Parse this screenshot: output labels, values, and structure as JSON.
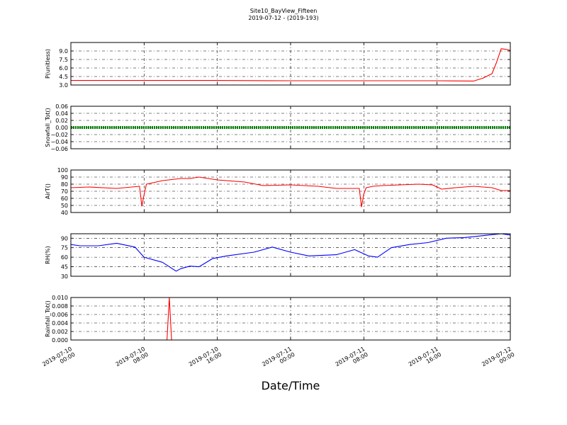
{
  "title": {
    "line1": "Site10_BayView_Fifteen",
    "line2": "2019-07-12 - (2019-193)"
  },
  "x_axis": {
    "label": "Date/Time",
    "range": [
      "2019-07-10 00:00",
      "2019-07-12 00:00"
    ],
    "ticks": [
      {
        "value": "2019-07-10 00:00",
        "line1": "2019-07-10",
        "line2": "00:00"
      },
      {
        "value": "2019-07-10 08:00",
        "line1": "2019-07-10",
        "line2": "08:00"
      },
      {
        "value": "2019-07-10 16:00",
        "line1": "2019-07-10",
        "line2": "16:00"
      },
      {
        "value": "2019-07-11 00:00",
        "line1": "2019-07-11",
        "line2": "00:00"
      },
      {
        "value": "2019-07-11 08:00",
        "line1": "2019-07-11",
        "line2": "08:00"
      },
      {
        "value": "2019-07-11 16:00",
        "line1": "2019-07-11",
        "line2": "16:00"
      },
      {
        "value": "2019-07-12 00:00",
        "line1": "2019-07-12",
        "line2": "00:00"
      }
    ]
  },
  "chart_data": [
    {
      "type": "line",
      "ylabel": "P(unitless)",
      "ylim": [
        3.0,
        10.5
      ],
      "yticks": [
        "3.0",
        "4.5",
        "6.0",
        "7.5",
        "9.0"
      ],
      "grid": true,
      "series": [
        {
          "color": "#ff0000",
          "marker": "none",
          "x": [
            "2019-07-10 00:00",
            "2019-07-10 08:00",
            "2019-07-10 16:00",
            "2019-07-11 00:00",
            "2019-07-11 08:00",
            "2019-07-11 16:00",
            "2019-07-11 20:00",
            "2019-07-11 21:00",
            "2019-07-11 22:00",
            "2019-07-11 22:30",
            "2019-07-11 23:00",
            "2019-07-11 23:30",
            "2019-07-12 00:00"
          ],
          "y": [
            3.8,
            3.8,
            3.8,
            3.75,
            3.75,
            3.75,
            3.7,
            4.2,
            5.0,
            7.0,
            9.4,
            9.3,
            9.1
          ]
        }
      ]
    },
    {
      "type": "line",
      "ylabel": "Snowfall_Tot()",
      "ylim": [
        -0.06,
        0.06
      ],
      "yticks": [
        "−0.06",
        "−0.04",
        "−0.02",
        "0.00",
        "0.02",
        "0.04",
        "0.06"
      ],
      "grid": true,
      "series": [
        {
          "color": "#008000",
          "marker": "dot",
          "x": [
            "2019-07-10 00:00",
            "2019-07-12 00:00"
          ],
          "y": [
            0.0,
            0.0
          ]
        }
      ]
    },
    {
      "type": "line",
      "ylabel": "AirT()",
      "ylim": [
        40,
        100
      ],
      "yticks": [
        "40",
        "50",
        "60",
        "70",
        "80",
        "90",
        "100"
      ],
      "grid": true,
      "series": [
        {
          "color": "#ff0000",
          "marker": "none",
          "x": [
            "2019-07-10 00:00",
            "2019-07-10 02:00",
            "2019-07-10 05:00",
            "2019-07-10 07:30",
            "2019-07-10 07:45",
            "2019-07-10 08:00",
            "2019-07-10 08:15",
            "2019-07-10 10:00",
            "2019-07-10 12:00",
            "2019-07-10 13:00",
            "2019-07-10 14:00",
            "2019-07-10 16:00",
            "2019-07-10 19:00",
            "2019-07-10 21:00",
            "2019-07-11 00:00",
            "2019-07-11 03:00",
            "2019-07-11 05:00",
            "2019-07-11 07:30",
            "2019-07-11 07:45",
            "2019-07-11 08:00",
            "2019-07-11 08:15",
            "2019-07-11 09:00",
            "2019-07-11 10:00",
            "2019-07-11 12:00",
            "2019-07-11 14:00",
            "2019-07-11 15:30",
            "2019-07-11 16:30",
            "2019-07-11 18:00",
            "2019-07-11 20:00",
            "2019-07-11 22:00",
            "2019-07-11 23:00",
            "2019-07-12 00:00"
          ],
          "y": [
            75,
            76,
            74,
            77,
            49,
            65,
            80,
            85,
            88,
            88,
            90,
            86,
            83,
            78,
            79,
            77,
            74,
            74,
            48,
            66,
            75,
            77,
            78,
            79,
            80,
            79,
            73,
            75,
            77,
            75,
            71,
            71
          ]
        }
      ]
    },
    {
      "type": "line",
      "ylabel": "RH(%)",
      "ylim": [
        30,
        97
      ],
      "yticks": [
        "30",
        "45",
        "60",
        "75",
        "90"
      ],
      "grid": true,
      "series": [
        {
          "color": "#0000ff",
          "marker": "none",
          "x": [
            "2019-07-10 00:00",
            "2019-07-10 01:00",
            "2019-07-10 03:00",
            "2019-07-10 05:00",
            "2019-07-10 07:00",
            "2019-07-10 08:00",
            "2019-07-10 10:00",
            "2019-07-10 11:30",
            "2019-07-10 12:00",
            "2019-07-10 13:00",
            "2019-07-10 14:00",
            "2019-07-10 15:30",
            "2019-07-10 17:00",
            "2019-07-10 20:00",
            "2019-07-10 22:00",
            "2019-07-11 00:00",
            "2019-07-11 02:00",
            "2019-07-11 05:00",
            "2019-07-11 07:00",
            "2019-07-11 08:30",
            "2019-07-11 09:30",
            "2019-07-11 11:00",
            "2019-07-11 13:00",
            "2019-07-11 15:00",
            "2019-07-11 17:00",
            "2019-07-11 19:00",
            "2019-07-11 21:00",
            "2019-07-11 23:00",
            "2019-07-12 00:00"
          ],
          "y": [
            80,
            78,
            78,
            82,
            76,
            60,
            52,
            38,
            42,
            46,
            45,
            58,
            62,
            68,
            76,
            68,
            62,
            64,
            72,
            62,
            60,
            75,
            80,
            83,
            90,
            91,
            94,
            97,
            95
          ]
        }
      ]
    },
    {
      "type": "line",
      "ylabel": "Rainfall_Tot()",
      "ylim": [
        0.0,
        0.01
      ],
      "yticks": [
        "0.000",
        "0.002",
        "0.004",
        "0.006",
        "0.008",
        "0.010"
      ],
      "grid": true,
      "series": [
        {
          "color": "#ff0000",
          "marker": "none",
          "x": [
            "2019-07-10 00:00",
            "2019-07-10 10:30",
            "2019-07-10 10:45",
            "2019-07-10 11:00",
            "2019-07-12 00:00"
          ],
          "y": [
            0.0,
            0.0,
            0.01,
            0.0,
            0.0
          ]
        }
      ]
    }
  ]
}
